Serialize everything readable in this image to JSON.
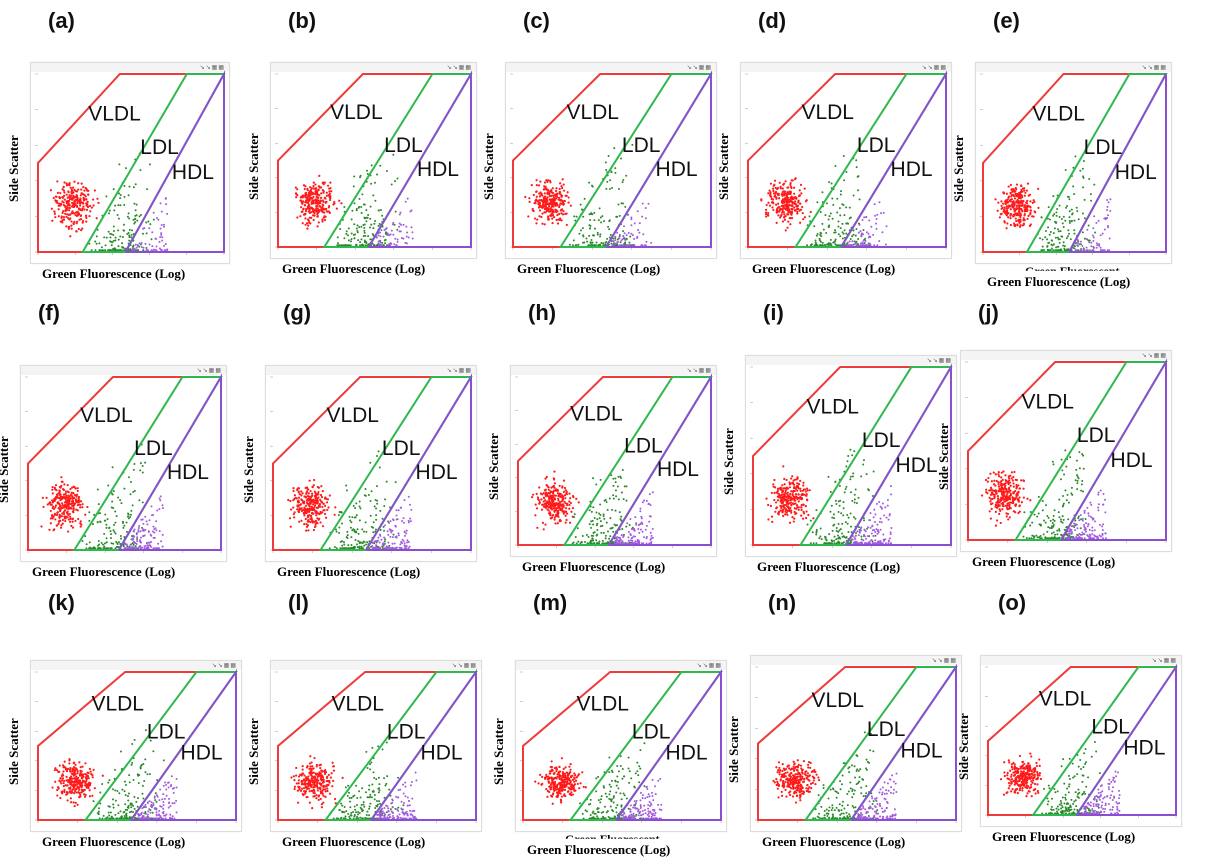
{
  "chart_data": {
    "type": "scatter",
    "xlabel": "Green Fluorescence (Log)",
    "ylabel": "Side Scatter",
    "x_scale": "log",
    "gates": [
      {
        "name": "VLDL",
        "color": "#f03a3a"
      },
      {
        "name": "LDL",
        "color": "#2fb84e"
      },
      {
        "name": "HDL",
        "color": "#8a4fd0"
      }
    ],
    "point_colors": {
      "VLDL": "#ff1a1a",
      "LDL": "#2a8a2a",
      "HDL": "#a35be0"
    },
    "panels": [
      {
        "label": "(a)"
      },
      {
        "label": "(b)"
      },
      {
        "label": "(c)"
      },
      {
        "label": "(d)"
      },
      {
        "label": "(e)",
        "overlap_text": "Green Fluorescent"
      },
      {
        "label": "(f)"
      },
      {
        "label": "(g)"
      },
      {
        "label": "(h)"
      },
      {
        "label": "(i)"
      },
      {
        "label": "(j)"
      },
      {
        "label": "(k)"
      },
      {
        "label": "(l)"
      },
      {
        "label": "(m)",
        "overlap_text": "Green Fluorescent"
      },
      {
        "label": "(n)"
      },
      {
        "label": "(o)"
      }
    ]
  }
}
